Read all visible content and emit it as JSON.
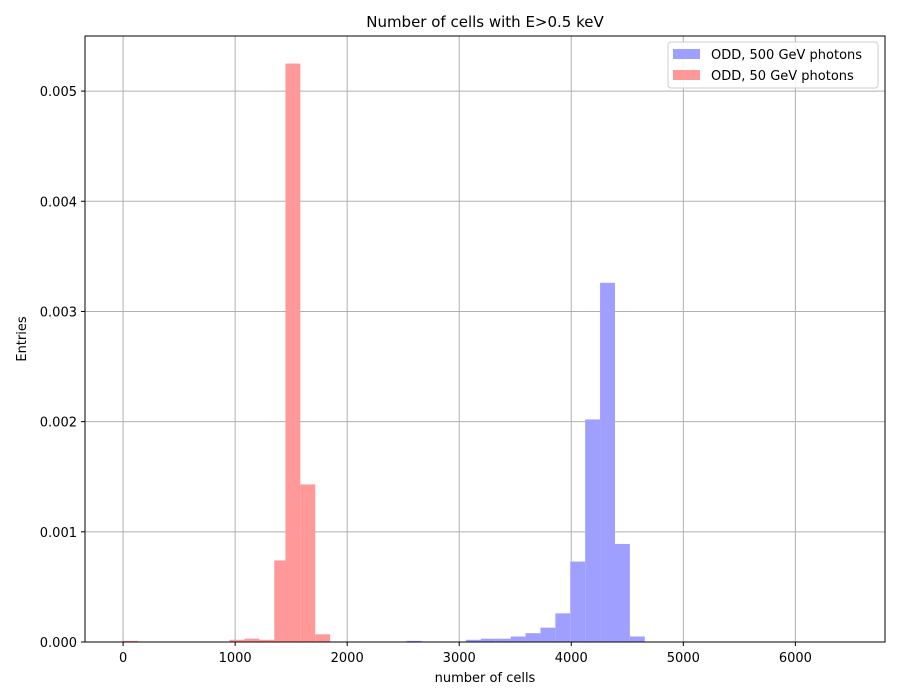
{
  "chart_data": {
    "type": "bar",
    "title": "Number of cells with E>0.5 keV",
    "xlabel": "number of cells",
    "ylabel": "Entries",
    "xlim": [
      -340,
      6800
    ],
    "ylim": [
      0,
      0.0055
    ],
    "grid": true,
    "legend_position": "top-right",
    "x_ticks": [
      0,
      1000,
      2000,
      3000,
      4000,
      5000,
      6000
    ],
    "y_ticks": [
      0.0,
      0.001,
      0.002,
      0.003,
      0.004,
      0.005
    ],
    "x_tick_labels": [
      "0",
      "1000",
      "2000",
      "3000",
      "4000",
      "5000",
      "6000"
    ],
    "y_tick_labels": [
      "0.000",
      "0.001",
      "0.002",
      "0.003",
      "0.004",
      "0.005"
    ],
    "bin_width": 133,
    "series": [
      {
        "name": "ODD, 500 GeV photons",
        "color": "#9f9fff",
        "bins": [
          {
            "x0": 2530,
            "value": 1e-05
          },
          {
            "x0": 3060,
            "value": 2e-05
          },
          {
            "x0": 3193,
            "value": 3e-05
          },
          {
            "x0": 3326,
            "value": 3e-05
          },
          {
            "x0": 3459,
            "value": 5e-05
          },
          {
            "x0": 3592,
            "value": 8e-05
          },
          {
            "x0": 3725,
            "value": 0.00013
          },
          {
            "x0": 3858,
            "value": 0.00026
          },
          {
            "x0": 3991,
            "value": 0.00073
          },
          {
            "x0": 4124,
            "value": 0.00202
          },
          {
            "x0": 4257,
            "value": 0.00326
          },
          {
            "x0": 4390,
            "value": 0.00089
          },
          {
            "x0": 4523,
            "value": 5e-05
          }
        ]
      },
      {
        "name": "ODD, 50 GeV photons",
        "color": "#ff9999",
        "bins": [
          {
            "x0": 0,
            "value": 1e-05
          },
          {
            "x0": 950,
            "value": 2e-05
          },
          {
            "x0": 1083,
            "value": 3e-05
          },
          {
            "x0": 1216,
            "value": 2e-05
          },
          {
            "x0": 1349,
            "value": 0.00074
          },
          {
            "x0": 1449,
            "value": 0.00525
          },
          {
            "x0": 1582,
            "value": 0.00143
          },
          {
            "x0": 1715,
            "value": 7e-05
          }
        ]
      }
    ]
  }
}
